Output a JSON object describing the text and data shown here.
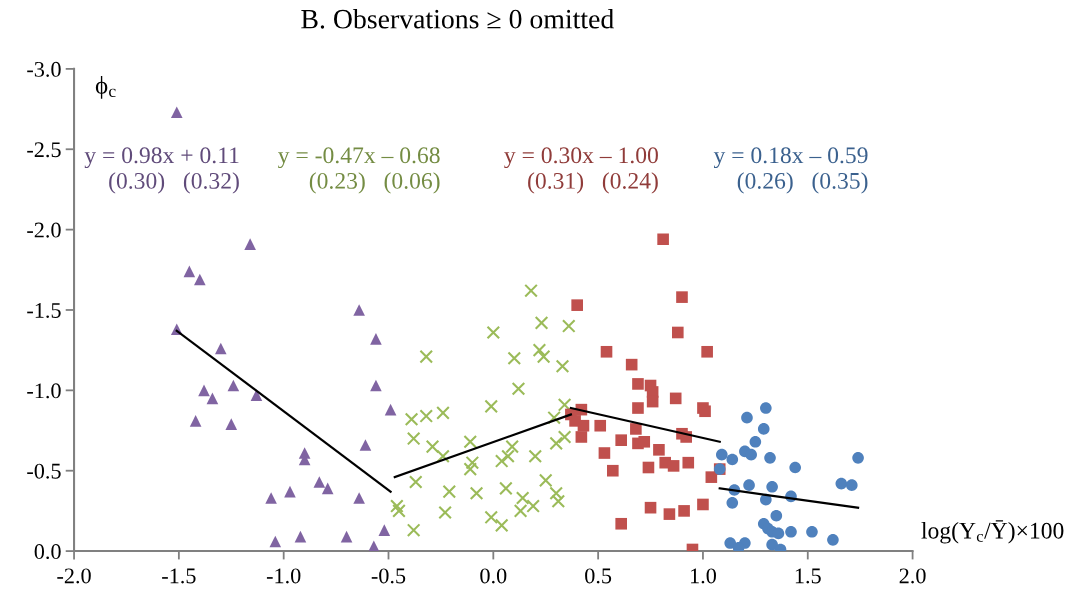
{
  "chart_data": {
    "type": "scatter",
    "title": "B. Observations ≥ 0 omitted",
    "xlabel": "log(Y$_{c}$/Ȳ)×100",
    "ylabel": "ϕ$_{c}$",
    "xlim": [
      -2,
      2
    ],
    "xticks": [
      {
        "value": -2,
        "label": "-2.0"
      },
      {
        "value": -1.5,
        "label": "-1.5"
      },
      {
        "value": -1,
        "label": "-1.0"
      },
      {
        "value": -0.5,
        "label": "-0.5"
      },
      {
        "value": 0,
        "label": "0.0"
      },
      {
        "value": 0.5,
        "label": "0.5"
      },
      {
        "value": 1,
        "label": "1.0"
      },
      {
        "value": 1.5,
        "label": "1.5"
      },
      {
        "value": 2,
        "label": "2.0"
      }
    ],
    "ylim": [
      0,
      -3
    ],
    "yticks": [
      {
        "value": 0,
        "label": "0.0"
      },
      {
        "value": -0.5,
        "label": "-0.5"
      },
      {
        "value": -1,
        "label": "-1.0"
      },
      {
        "value": -1.5,
        "label": "-1.5"
      },
      {
        "value": -2,
        "label": "-2.0"
      },
      {
        "value": -2.5,
        "label": "-2.5"
      },
      {
        "value": -3,
        "label": "-3.0"
      }
    ],
    "grid": false,
    "annotations": [
      "y = 0.98x + 0.11\n(0.30)   (0.32)",
      "y = -0.47x – 0.68\n(0.23)   (0.06)",
      "y = 0.30x – 1.00\n(0.31)   (0.24)",
      "y = 0.18x – 0.59\n(0.26)   (0.35)"
    ],
    "series": [
      {
        "marker": "triangle",
        "color": "#8064a2",
        "x": [
          -1.51,
          -1.16,
          -1.45,
          -1.4,
          -0.64,
          -1.51,
          -0.56,
          -1.3,
          -0.56,
          -1.38,
          -1.24,
          -1.34,
          -1.13,
          -0.49,
          -1.42,
          -1.25,
          -0.61,
          -0.9,
          -0.9,
          -0.83,
          -0.79,
          -0.97,
          -0.64,
          -1.06,
          -0.52,
          -0.7,
          -0.92,
          -1.04,
          -0.57
        ],
        "values": [
          -2.73,
          -1.91,
          -1.74,
          -1.69,
          -1.5,
          -1.38,
          -1.32,
          -1.26,
          -1.03,
          -1.0,
          -1.03,
          -0.95,
          -0.97,
          -0.88,
          -0.81,
          -0.79,
          -0.66,
          -0.61,
          -0.57,
          -0.43,
          -0.39,
          -0.37,
          -0.33,
          -0.33,
          -0.13,
          -0.09,
          -0.09,
          -0.06,
          -0.03
        ]
      },
      {
        "marker": "cross",
        "color": "#9bbb59",
        "x": [
          0.18,
          0.23,
          0.36,
          0.0,
          -0.32,
          0.1,
          0.22,
          0.24,
          0.33,
          0.12,
          -0.01,
          0.34,
          0.29,
          -0.39,
          -0.32,
          -0.24,
          -0.38,
          -0.29,
          -0.24,
          -0.11,
          0.09,
          0.07,
          0.04,
          -0.1,
          -0.11,
          0.2,
          0.3,
          0.34,
          -0.37,
          -0.21,
          -0.08,
          0.06,
          0.25,
          0.3,
          0.14,
          0.19,
          0.31,
          0.13,
          -0.23,
          -0.01,
          0.04,
          -0.46,
          -0.45,
          -0.38
        ],
        "values": [
          -1.62,
          -1.42,
          -1.4,
          -1.36,
          -1.21,
          -1.2,
          -1.25,
          -1.21,
          -1.15,
          -1.01,
          -0.9,
          -0.91,
          -0.83,
          -0.82,
          -0.84,
          -0.86,
          -0.7,
          -0.65,
          -0.59,
          -0.68,
          -0.65,
          -0.59,
          -0.56,
          -0.55,
          -0.51,
          -0.59,
          -0.67,
          -0.71,
          -0.43,
          -0.37,
          -0.36,
          -0.39,
          -0.44,
          -0.36,
          -0.33,
          -0.28,
          -0.31,
          -0.25,
          -0.24,
          -0.21,
          -0.16,
          -0.28,
          -0.25,
          -0.13
        ]
      },
      {
        "marker": "square",
        "color": "#c0504d",
        "x": [
          0.81,
          0.4,
          0.9,
          0.88,
          0.54,
          1.02,
          0.66,
          0.69,
          0.75,
          0.76,
          0.76,
          0.87,
          0.69,
          1.0,
          1.01,
          0.42,
          0.37,
          0.39,
          0.43,
          0.51,
          0.42,
          0.68,
          0.9,
          0.92,
          0.61,
          0.69,
          0.72,
          0.53,
          0.79,
          0.82,
          0.86,
          0.93,
          0.74,
          0.57,
          1.08,
          1.04,
          0.75,
          0.84,
          0.91,
          1.0,
          0.61,
          0.95
        ],
        "values": [
          -1.94,
          -1.53,
          -1.58,
          -1.36,
          -1.24,
          -1.24,
          -1.16,
          -1.04,
          -1.03,
          -0.99,
          -0.93,
          -0.95,
          -0.89,
          -0.89,
          -0.87,
          -0.88,
          -0.85,
          -0.81,
          -0.78,
          -0.78,
          -0.71,
          -0.76,
          -0.73,
          -0.71,
          -0.69,
          -0.67,
          -0.68,
          -0.61,
          -0.63,
          -0.55,
          -0.53,
          -0.55,
          -0.52,
          -0.5,
          -0.51,
          -0.46,
          -0.27,
          -0.23,
          -0.25,
          -0.29,
          -0.17,
          -0.01
        ]
      },
      {
        "marker": "circle",
        "color": "#4f81bd",
        "x": [
          1.3,
          1.21,
          1.29,
          1.25,
          1.09,
          1.14,
          1.2,
          1.23,
          1.32,
          1.74,
          1.44,
          1.08,
          1.15,
          1.22,
          1.33,
          1.14,
          1.3,
          1.42,
          1.66,
          1.71,
          1.35,
          1.29,
          1.31,
          1.33,
          1.36,
          1.42,
          1.52,
          1.62,
          1.13,
          1.2,
          1.17,
          1.33,
          1.37
        ],
        "values": [
          -0.89,
          -0.83,
          -0.76,
          -0.68,
          -0.6,
          -0.57,
          -0.62,
          -0.6,
          -0.58,
          -0.58,
          -0.52,
          -0.51,
          -0.38,
          -0.41,
          -0.4,
          -0.3,
          -0.32,
          -0.34,
          -0.42,
          -0.41,
          -0.22,
          -0.17,
          -0.14,
          -0.12,
          -0.11,
          -0.12,
          -0.12,
          -0.07,
          -0.05,
          -0.05,
          -0.02,
          -0.04,
          -0.01
        ]
      },
      {
        "type": "line",
        "color": "#000000",
        "x": [
          -1.51,
          -0.49
        ],
        "values": [
          -1.37,
          -0.37
        ]
      },
      {
        "type": "line",
        "color": "#000000",
        "x": [
          -0.47,
          0.37
        ],
        "values": [
          -0.46,
          -0.85
        ]
      },
      {
        "type": "line",
        "color": "#000000",
        "x": [
          0.37,
          1.08
        ],
        "values": [
          -0.89,
          -0.68
        ]
      },
      {
        "type": "line",
        "color": "#000000",
        "x": [
          1.08,
          1.74
        ],
        "values": [
          -0.39,
          -0.27
        ]
      }
    ]
  }
}
